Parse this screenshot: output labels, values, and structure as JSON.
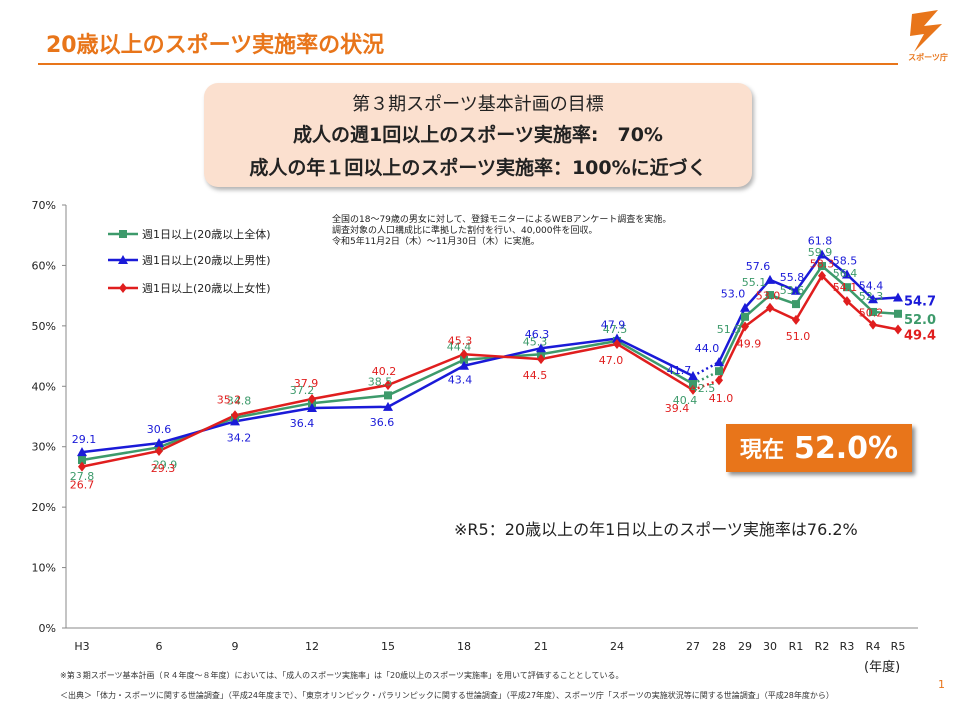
{
  "page": {
    "title": "20歳以上のスポーツ実施率の状況",
    "logo_text": "スポーツ庁",
    "page_number": "1"
  },
  "goal": {
    "line1": "第３期スポーツ基本計画の目標",
    "line2": "成人の週1回以上のスポーツ実施率:　70%",
    "line3": "成人の年１回以上のスポーツ実施率：100%に近づく"
  },
  "survey_note": [
    "全国の18～79歳の男女に対して、登録モニターによるWEBアンケート調査を実施。",
    "調査対象の人口構成比に準拠した割付を行い、40,000件を回収。",
    "令和5年11月2日（木）～11月30日（木）に実施。"
  ],
  "current": {
    "label": "現在",
    "value": "52.0%"
  },
  "r5_note": "※R5：20歳以上の年1日以上のスポーツ実施率は76.2%",
  "footnote1": "※第３期スポーツ基本計画（Ｒ４年度～８年度）においては、「成人のスポーツ実施率」は「20歳以上のスポーツ実施率」を用いて評価することとしている。",
  "footnote2": "＜出典＞「体力・スポーツに関する世論調査」（平成24年度まで）、「東京オリンピック・パラリンピックに関する世論調査」（平成27年度）、スポーツ庁「スポーツの実施状況等に関する世論調査」（平成28年度から）",
  "chart_data": {
    "type": "line",
    "xlabel": "(年度)",
    "ylabel": "",
    "ylim": [
      0,
      70
    ],
    "yticks": [
      "0%",
      "10%",
      "20%",
      "30%",
      "40%",
      "50%",
      "60%",
      "70%"
    ],
    "categories": [
      "H3",
      "6",
      "9",
      "12",
      "15",
      "18",
      "21",
      "24",
      "27",
      "28",
      "29",
      "30",
      "R1",
      "R2",
      "R3",
      "R4",
      "R5"
    ],
    "series": [
      {
        "name": "週1日以上(20歳以上全体)",
        "color": "#3d9a6b",
        "marker": "square",
        "values": [
          27.8,
          29.9,
          34.8,
          37.2,
          38.5,
          44.4,
          45.3,
          47.5,
          40.4,
          42.5,
          51.5,
          55.1,
          53.6,
          59.9,
          56.4,
          52.3,
          52.0
        ]
      },
      {
        "name": "週1日以上(20歳以上男性)",
        "color": "#1a1ad8",
        "marker": "triangle",
        "values": [
          29.1,
          30.6,
          34.2,
          36.4,
          36.6,
          43.4,
          46.3,
          47.9,
          41.7,
          44.0,
          53.0,
          57.6,
          55.8,
          61.8,
          58.5,
          54.4,
          54.7
        ]
      },
      {
        "name": "週1日以上(20歳以上女性)",
        "color": "#e01e1e",
        "marker": "diamond",
        "values": [
          26.7,
          29.3,
          35.2,
          37.9,
          40.2,
          45.3,
          44.5,
          47.0,
          39.4,
          41.0,
          49.9,
          53.0,
          51.0,
          58.3,
          54.1,
          50.2,
          49.4
        ]
      }
    ],
    "legend_position": "top-left",
    "dotted_segment": "27-28"
  }
}
